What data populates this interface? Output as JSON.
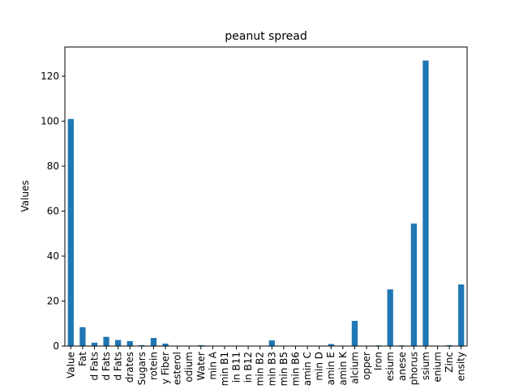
{
  "chart_data": {
    "type": "bar",
    "title": "peanut spread",
    "xlabel": "",
    "ylabel": "Values",
    "ylim": [
      0,
      133
    ],
    "yticks": [
      0,
      20,
      40,
      60,
      80,
      100,
      120
    ],
    "categories": [
      "Value",
      "Fat",
      "d Fats",
      "d Fats",
      "d Fats",
      "drates",
      "Sugars",
      "rotein",
      "y Fiber",
      "esterol",
      "odium",
      "Water",
      "min A",
      "min B1",
      "in B11",
      "in B12",
      "min B2",
      "min B3",
      "min B5",
      "min B6",
      "amin C",
      "min D",
      "amin E",
      "amin K",
      "alcium",
      "opper",
      "Iron",
      "esium",
      "anese",
      "phorus",
      "ssium",
      "enium",
      "Zinc",
      "ensity"
    ],
    "values": [
      101,
      8.4,
      1.5,
      4.1,
      2.7,
      2.2,
      0.4,
      3.6,
      1.1,
      0,
      0.1,
      0.4,
      0,
      0.1,
      0,
      0,
      0.1,
      2.5,
      0.1,
      0.1,
      0,
      0,
      0.9,
      0,
      11.2,
      0.1,
      0.3,
      25.2,
      0.3,
      54.5,
      127,
      0.1,
      0.4,
      27.4
    ],
    "bar_color": "#1f77b4",
    "grid": false,
    "legend": "none"
  }
}
